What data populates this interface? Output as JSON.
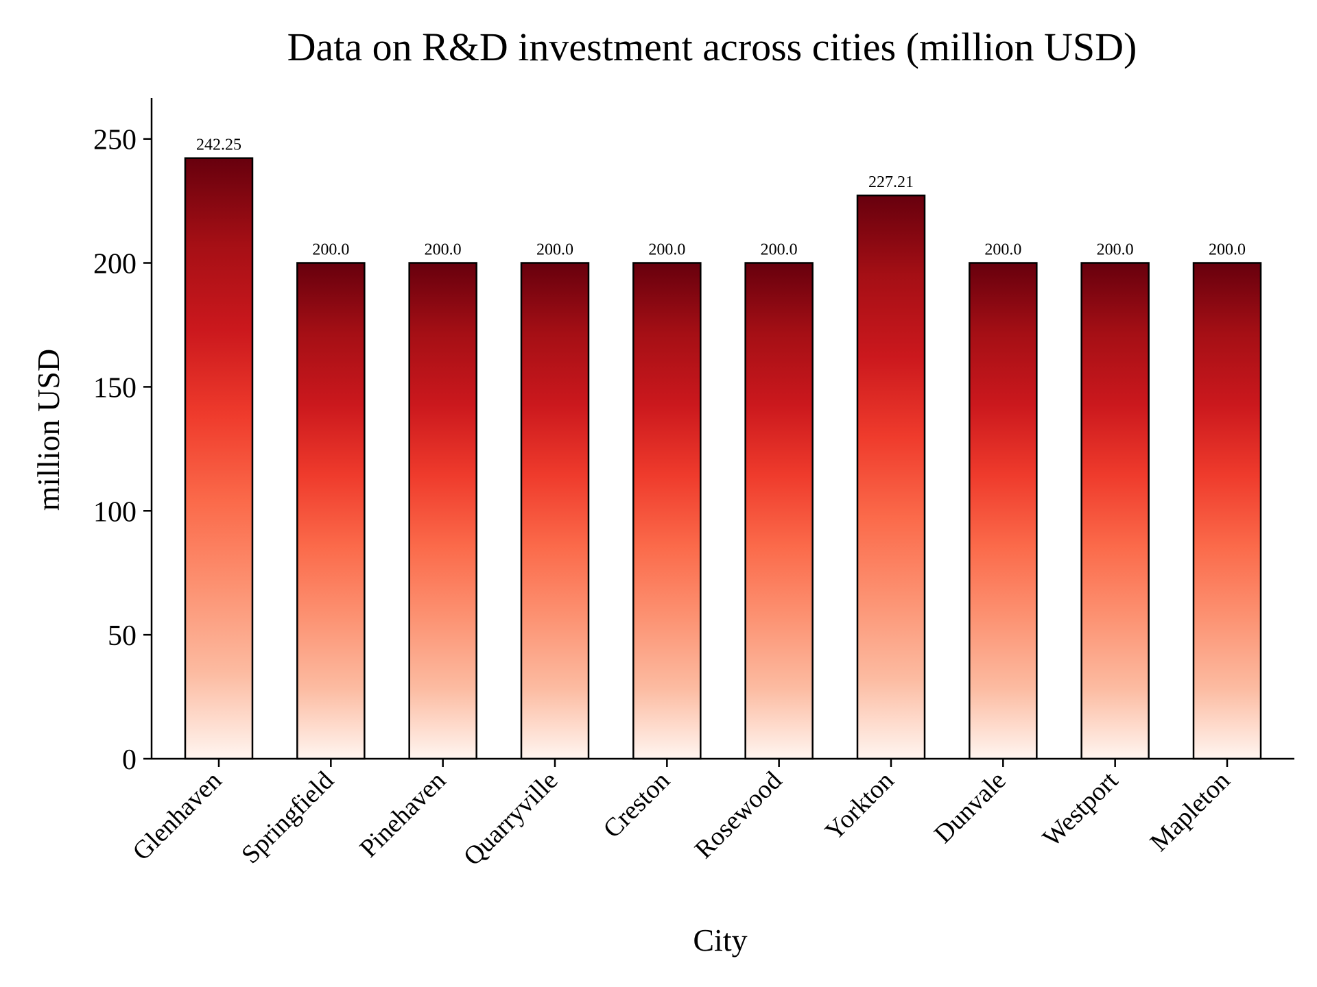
{
  "chart_data": {
    "type": "bar",
    "title": "Data on R&D investment across cities (million USD)",
    "xlabel": "City",
    "ylabel": "million USD",
    "categories": [
      "Glenhaven",
      "Springfield",
      "Pinehaven",
      "Quarryville",
      "Creston",
      "Rosewood",
      "Yorkton",
      "Dunvale",
      "Westport",
      "Mapleton"
    ],
    "values": [
      242.25,
      200.0,
      200.0,
      200.0,
      200.0,
      200.0,
      227.21,
      200.0,
      200.0,
      200.0
    ],
    "value_labels": [
      "242.25",
      "200.0",
      "200.0",
      "200.0",
      "200.0",
      "200.0",
      "227.21",
      "200.0",
      "200.0",
      "200.0"
    ],
    "ylim": [
      0,
      266.5
    ],
    "yticks": [
      0,
      50,
      100,
      150,
      200,
      250
    ],
    "grid": false,
    "legend": "none",
    "colormap": "Reds",
    "bar_gradient": [
      "#fff5f0",
      "#fcbba1",
      "#fc9272",
      "#fb6a4a",
      "#ef3b2c",
      "#cb181d",
      "#a50f15",
      "#67000d"
    ],
    "bar_edge_color": "#000000"
  }
}
